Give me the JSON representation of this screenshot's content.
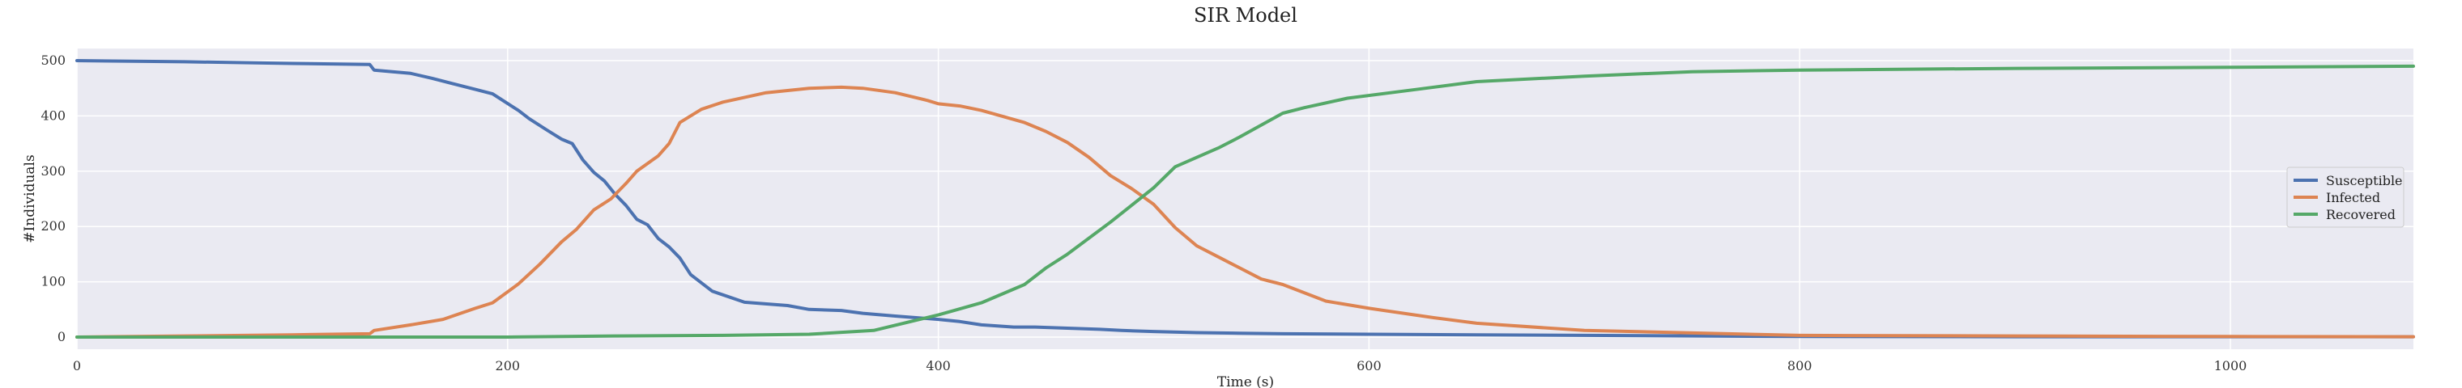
{
  "chart_data": {
    "type": "line",
    "title": "SIR Model",
    "xlabel": "Time (s)",
    "ylabel": "#Individuals",
    "xlim": [
      0,
      1085
    ],
    "ylim": [
      -22,
      522
    ],
    "xticks": [
      0,
      200,
      400,
      600,
      800,
      1000
    ],
    "yticks": [
      0,
      100,
      200,
      300,
      400,
      500
    ],
    "grid": true,
    "legend_position": "center-right",
    "background": "#eaeaf2",
    "series": [
      {
        "name": "Susceptible",
        "color": "#4c72b0",
        "x": [
          0,
          50,
          100,
          136,
          138,
          155,
          165,
          175,
          185,
          193,
          205,
          210,
          218,
          225,
          230,
          235,
          240,
          245,
          250,
          255,
          260,
          265,
          270,
          275,
          280,
          285,
          295,
          310,
          330,
          340,
          355,
          365,
          380,
          400,
          410,
          420,
          435,
          445,
          460,
          475,
          485,
          500,
          520,
          540,
          560,
          600,
          650,
          700,
          800,
          900,
          1000,
          1085
        ],
        "y": [
          500,
          498,
          495,
          493,
          483,
          477,
          468,
          458,
          448,
          440,
          410,
          395,
          375,
          358,
          350,
          320,
          298,
          282,
          258,
          238,
          213,
          203,
          178,
          163,
          143,
          113,
          83,
          63,
          57,
          50,
          48,
          43,
          38,
          32,
          28,
          22,
          18,
          18,
          16,
          14,
          12,
          10,
          8,
          7,
          6,
          5,
          4,
          3,
          1,
          0.5,
          0.5,
          0.5
        ]
      },
      {
        "name": "Infected",
        "color": "#dd8452",
        "x": [
          0,
          50,
          100,
          136,
          138,
          155,
          170,
          185,
          193,
          205,
          215,
          225,
          232,
          240,
          248,
          255,
          260,
          270,
          275,
          280,
          290,
          300,
          320,
          340,
          355,
          365,
          380,
          395,
          400,
          410,
          420,
          440,
          450,
          460,
          470,
          480,
          490,
          500,
          510,
          520,
          530,
          540,
          550,
          560,
          580,
          600,
          630,
          650,
          700,
          800,
          900,
          1000,
          1085
        ],
        "y": [
          0,
          2,
          4,
          6,
          12,
          22,
          32,
          52,
          62,
          96,
          132,
          172,
          195,
          230,
          250,
          278,
          300,
          328,
          350,
          388,
          412,
          425,
          442,
          450,
          452,
          450,
          442,
          428,
          422,
          418,
          410,
          388,
          372,
          352,
          325,
          292,
          268,
          240,
          198,
          165,
          145,
          125,
          105,
          95,
          65,
          52,
          35,
          25,
          12,
          3,
          2,
          1,
          0.5
        ]
      },
      {
        "name": "Recovered",
        "color": "#55a868",
        "x": [
          0,
          100,
          200,
          250,
          300,
          340,
          370,
          400,
          420,
          440,
          450,
          460,
          480,
          500,
          510,
          520,
          530,
          540,
          560,
          570,
          590,
          620,
          650,
          700,
          750,
          800,
          900,
          1000,
          1085
        ],
        "y": [
          0,
          0,
          0,
          2,
          3,
          5,
          12,
          40,
          62,
          95,
          125,
          150,
          208,
          270,
          308,
          325,
          342,
          362,
          405,
          415,
          432,
          447,
          462,
          472,
          480,
          483,
          486,
          488,
          490
        ]
      }
    ]
  }
}
